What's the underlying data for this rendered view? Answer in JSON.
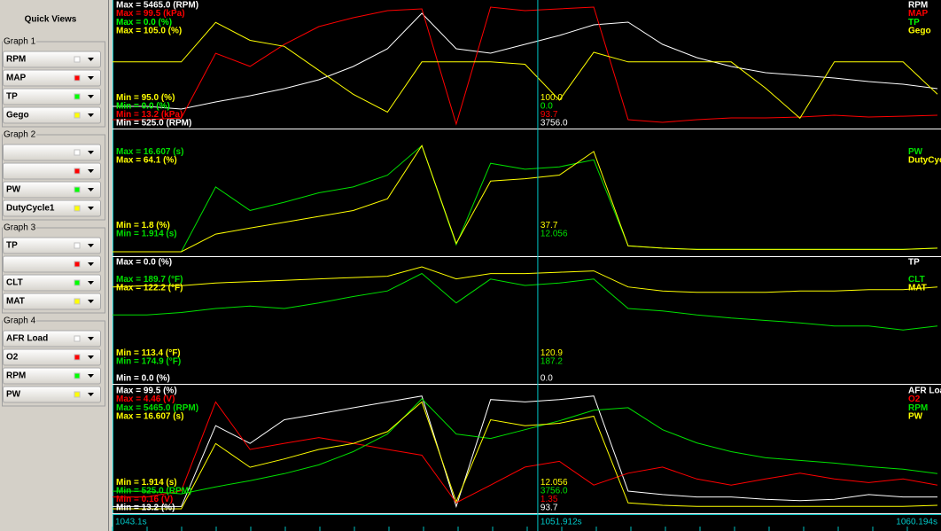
{
  "sidebar": {
    "title": "Quick Views",
    "groups": [
      {
        "title": "Graph 1",
        "rows": [
          {
            "label": "RPM",
            "color": "#ffffff"
          },
          {
            "label": "MAP",
            "color": "#ff0000"
          },
          {
            "label": "TP",
            "color": "#00ff00"
          },
          {
            "label": "Gego",
            "color": "#ffff00"
          }
        ]
      },
      {
        "title": "Graph 2",
        "rows": [
          {
            "label": null,
            "color": "#ffffff"
          },
          {
            "label": null,
            "color": "#ff0000"
          },
          {
            "label": "PW",
            "color": "#00ff00"
          },
          {
            "label": "DutyCycle1",
            "color": "#ffff00"
          }
        ]
      },
      {
        "title": "Graph 3",
        "rows": [
          {
            "label": "TP",
            "color": "#ffffff"
          },
          {
            "label": null,
            "color": "#ff0000"
          },
          {
            "label": "CLT",
            "color": "#00ff00"
          },
          {
            "label": "MAT",
            "color": "#ffff00"
          }
        ]
      },
      {
        "title": "Graph 4",
        "rows": [
          {
            "label": "AFR Load",
            "color": "#ffffff"
          },
          {
            "label": "O2",
            "color": "#ff0000"
          },
          {
            "label": "RPM",
            "color": "#00ff00"
          },
          {
            "label": "PW",
            "color": "#ffff00"
          }
        ]
      }
    ]
  },
  "time": {
    "start": {
      "value": 1043.1,
      "label": "1043.1s"
    },
    "end": {
      "value": 1060.194,
      "label": "1060.194s"
    },
    "cursor": {
      "value": 1051.912,
      "label": "1051.912s"
    },
    "values": [
      1043.1,
      1043.812,
      1044.525,
      1045.237,
      1045.949,
      1046.661,
      1047.374,
      1048.086,
      1048.798,
      1049.51,
      1050.223,
      1050.935,
      1051.647,
      1052.359,
      1053.071,
      1053.784,
      1054.496,
      1055.208,
      1055.92,
      1056.633,
      1057.345,
      1058.057,
      1058.769,
      1059.482,
      1060.194
    ]
  },
  "graphs": [
    {
      "traces": [
        {
          "name": "RPM",
          "color": "#ffffff",
          "max": {
            "value": 5465.0,
            "label": "Max = 5465.0 (RPM)"
          },
          "min": {
            "value": 525.0,
            "label": "Min = 525.0 (RPM)"
          },
          "cursor_label": "3756.0",
          "values": [
            1257,
            1257,
            1147,
            1440,
            1696,
            1989,
            2355,
            2904,
            3635,
            5099,
            3635,
            3452,
            3818,
            4184,
            4623,
            4733,
            3818,
            3269,
            2904,
            2647,
            2537,
            2428,
            2281,
            2172,
            1989
          ]
        },
        {
          "name": "MAP",
          "color": "#ff0000",
          "max": {
            "value": 99.5,
            "label": "Max = 99.5 (kPa)"
          },
          "min": {
            "value": 13.2,
            "label": "Min = 13.2 (kPa)"
          },
          "cursor_label": "93.7",
          "values": [
            16.4,
            16.4,
            17.7,
            64.3,
            54.8,
            70.7,
            83.5,
            89.9,
            95.0,
            96.3,
            13.2,
            97.6,
            95.0,
            96.3,
            97.6,
            16.4,
            14.5,
            16.4,
            17.7,
            17.7,
            18.3,
            19.6,
            18.3,
            18.9,
            19.6
          ]
        },
        {
          "name": "TP",
          "color": "#00ff00",
          "max": {
            "value": 0.0,
            "label": "Max = 0.0 (%)"
          },
          "min": {
            "value": 0.0,
            "label": "Min = 0.0 (%)"
          },
          "cursor_label": "0.0"
        },
        {
          "name": "Gego",
          "color": "#ffff00",
          "max": {
            "value": 105.0,
            "label": "Max = 105.0 (%)"
          },
          "min": {
            "value": 95.0,
            "label": "Min = 95.0 (%)"
          },
          "cursor_label": "100.0",
          "values": [
            100.2,
            100.2,
            100.2,
            103.5,
            102.0,
            101.5,
            99.5,
            97.5,
            96.0,
            100.2,
            100.2,
            100.2,
            100.0,
            97.0,
            101.0,
            100.2,
            100.2,
            100.2,
            100.2,
            98.0,
            95.5,
            100.2,
            100.2,
            100.2,
            97.5
          ]
        }
      ]
    },
    {
      "traces": [
        null,
        null,
        {
          "name": "PW",
          "color": "#00e000",
          "max": {
            "value": 16.607,
            "label": "Max = 16.607 (s)"
          },
          "min": {
            "value": 1.914,
            "label": "Min = 1.914 (s)"
          },
          "cursor_label": "12.056",
          "values": [
            1.914,
            1.914,
            1.914,
            9.995,
            7.057,
            8.085,
            9.261,
            9.995,
            11.464,
            15.138,
            2.796,
            12.934,
            12.199,
            12.493,
            13.375,
            2.649,
            2.355,
            2.208,
            2.208,
            2.208,
            2.208,
            2.208,
            2.208,
            2.208,
            2.355
          ]
        },
        {
          "name": "DutyCycle1",
          "color": "#ffff00",
          "max": {
            "value": 64.1,
            "label": "Max = 64.1 (%)"
          },
          "min": {
            "value": 1.8,
            "label": "Min = 1.8 (%)"
          },
          "cursor_label": "37.7",
          "values": [
            1.8,
            1.8,
            1.8,
            11.1,
            14.3,
            17.4,
            20.5,
            23.6,
            29.8,
            57.9,
            6.2,
            39.2,
            40.4,
            42.3,
            54.8,
            4.9,
            3.7,
            3.0,
            3.0,
            3.0,
            3.0,
            3.0,
            3.0,
            3.0,
            3.7
          ]
        }
      ]
    },
    {
      "traces": [
        {
          "name": "TP",
          "color": "#ffffff",
          "max": {
            "value": 0.0,
            "label": "Max = 0.0 (%)"
          },
          "min": {
            "value": 0.0,
            "label": "Min = 0.0 (%)"
          },
          "cursor_label": "0.0"
        },
        null,
        {
          "name": "CLT",
          "color": "#00e000",
          "max": {
            "value": 189.7,
            "label": "Max = 189.7 (°F)"
          },
          "min": {
            "value": 174.9,
            "label": "Min = 174.9 (°F)"
          },
          "cursor_label": "187.2",
          "values": [
            183.0,
            183.0,
            183.3,
            183.8,
            184.1,
            183.8,
            184.5,
            185.3,
            186.0,
            188.2,
            184.5,
            187.5,
            186.7,
            187.0,
            187.5,
            183.8,
            183.5,
            183.0,
            182.6,
            182.3,
            182.0,
            181.6,
            181.6,
            181.1,
            181.6
          ]
        },
        {
          "name": "MAT",
          "color": "#ffff00",
          "max": {
            "value": 122.2,
            "label": "Max = 122.2 (°F)"
          },
          "min": {
            "value": 113.4,
            "label": "Min = 113.4 (°F)"
          },
          "cursor_label": "120.9",
          "values": [
            120.3,
            120.4,
            120.4,
            120.6,
            120.7,
            120.8,
            120.9,
            121.0,
            121.1,
            121.8,
            120.9,
            121.3,
            121.3,
            121.4,
            121.5,
            120.3,
            120.0,
            119.9,
            119.9,
            119.9,
            120.0,
            120.0,
            120.1,
            120.1,
            120.3
          ]
        }
      ]
    },
    {
      "traces": [
        {
          "name": "AFR Load",
          "color": "#ffffff",
          "max": {
            "value": 99.5,
            "label": "Max = 99.5 (%)"
          },
          "min": {
            "value": 13.2,
            "label": "Min = 13.2 (%)"
          },
          "cursor_label": "93.7",
          "values": [
            14.9,
            14.9,
            14.9,
            73.6,
            60.7,
            77.9,
            82.2,
            86.6,
            90.9,
            95.2,
            14.9,
            92.6,
            90.9,
            92.6,
            95.2,
            26.1,
            23.6,
            21.8,
            21.8,
            20.1,
            19.2,
            20.1,
            23.6,
            21.8,
            21.8
          ]
        },
        {
          "name": "O2",
          "color": "#ff0000",
          "max": {
            "value": 4.46,
            "label": "Max = 4.46 (V)"
          },
          "min": {
            "value": 0.16,
            "label": "Min = 0.16 (V)"
          },
          "cursor_label": "1.35",
          "values": [
            0.59,
            0.59,
            0.81,
            4.03,
            2.31,
            2.53,
            2.74,
            2.53,
            2.31,
            2.1,
            0.38,
            1.02,
            1.67,
            1.88,
            1.02,
            1.45,
            1.67,
            1.24,
            1.02,
            1.24,
            1.45,
            1.24,
            1.11,
            1.24,
            1.02
          ]
        },
        {
          "name": "RPM",
          "color": "#00e000",
          "max": {
            "value": 5465.0,
            "label": "Max = 5465.0 (RPM)"
          },
          "min": {
            "value": 525.0,
            "label": "Min = 525.0 (RPM)"
          },
          "cursor_label": "3756.0",
          "values": [
            1257,
            1257,
            1147,
            1440,
            1696,
            1989,
            2355,
            2904,
            3635,
            5099,
            3635,
            3452,
            3818,
            4184,
            4623,
            4733,
            3818,
            3269,
            2904,
            2647,
            2537,
            2428,
            2281,
            2172,
            1989
          ]
        },
        {
          "name": "PW",
          "color": "#ffff00",
          "max": {
            "value": 16.607,
            "label": "Max = 16.607 (s)"
          },
          "min": {
            "value": 1.914,
            "label": "Min = 1.914 (s)"
          },
          "cursor_label": "12.056",
          "values": [
            1.914,
            1.914,
            1.914,
            9.995,
            7.057,
            8.085,
            9.261,
            9.995,
            11.464,
            15.138,
            2.796,
            12.934,
            12.199,
            12.493,
            13.375,
            2.649,
            2.355,
            2.208,
            2.208,
            2.208,
            2.208,
            2.208,
            2.208,
            2.208,
            2.355
          ]
        }
      ]
    }
  ]
}
